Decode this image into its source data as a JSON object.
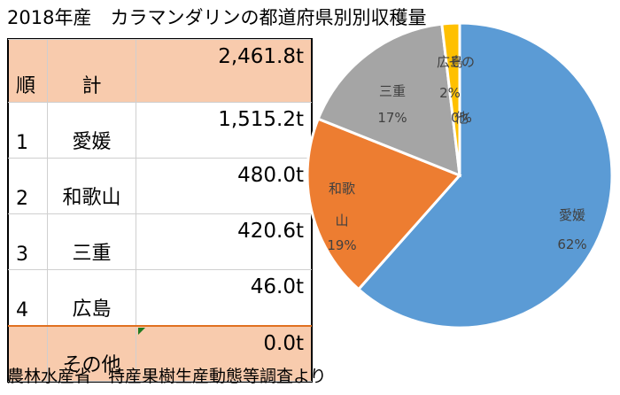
{
  "title": "2018年産　カラマンダリンの都道府県別別収穫量",
  "source": "農林水産省　特産果樹生産動態等調査より",
  "table": {
    "header": {
      "rank": "順",
      "label": "計",
      "value": "2,461.8t"
    },
    "rows": [
      {
        "rank": "1",
        "pref": "愛媛",
        "value": "1,515.2t"
      },
      {
        "rank": "2",
        "pref": "和歌山",
        "value": "480.0t"
      },
      {
        "rank": "3",
        "pref": "三重",
        "value": "420.6t"
      },
      {
        "rank": "4",
        "pref": "広島",
        "value": "46.0t"
      }
    ],
    "other": {
      "rank": "",
      "pref": "その他",
      "value": "0.0t"
    }
  },
  "chart_data": {
    "type": "pie",
    "slices": [
      {
        "label": "愛媛",
        "value": 1515.2,
        "percent_label": "62%",
        "color": "#5b9bd5"
      },
      {
        "label": "和歌山",
        "value": 480.0,
        "percent_label": "19%",
        "color": "#ed7d31"
      },
      {
        "label": "三重",
        "value": 420.6,
        "percent_label": "17%",
        "color": "#a5a5a5"
      },
      {
        "label": "広島",
        "value": 46.0,
        "percent_label": "2%",
        "color": "#ffc000"
      },
      {
        "label": "その他",
        "value": 0.0,
        "percent_label": "0%",
        "color": "#4472c4"
      }
    ]
  }
}
